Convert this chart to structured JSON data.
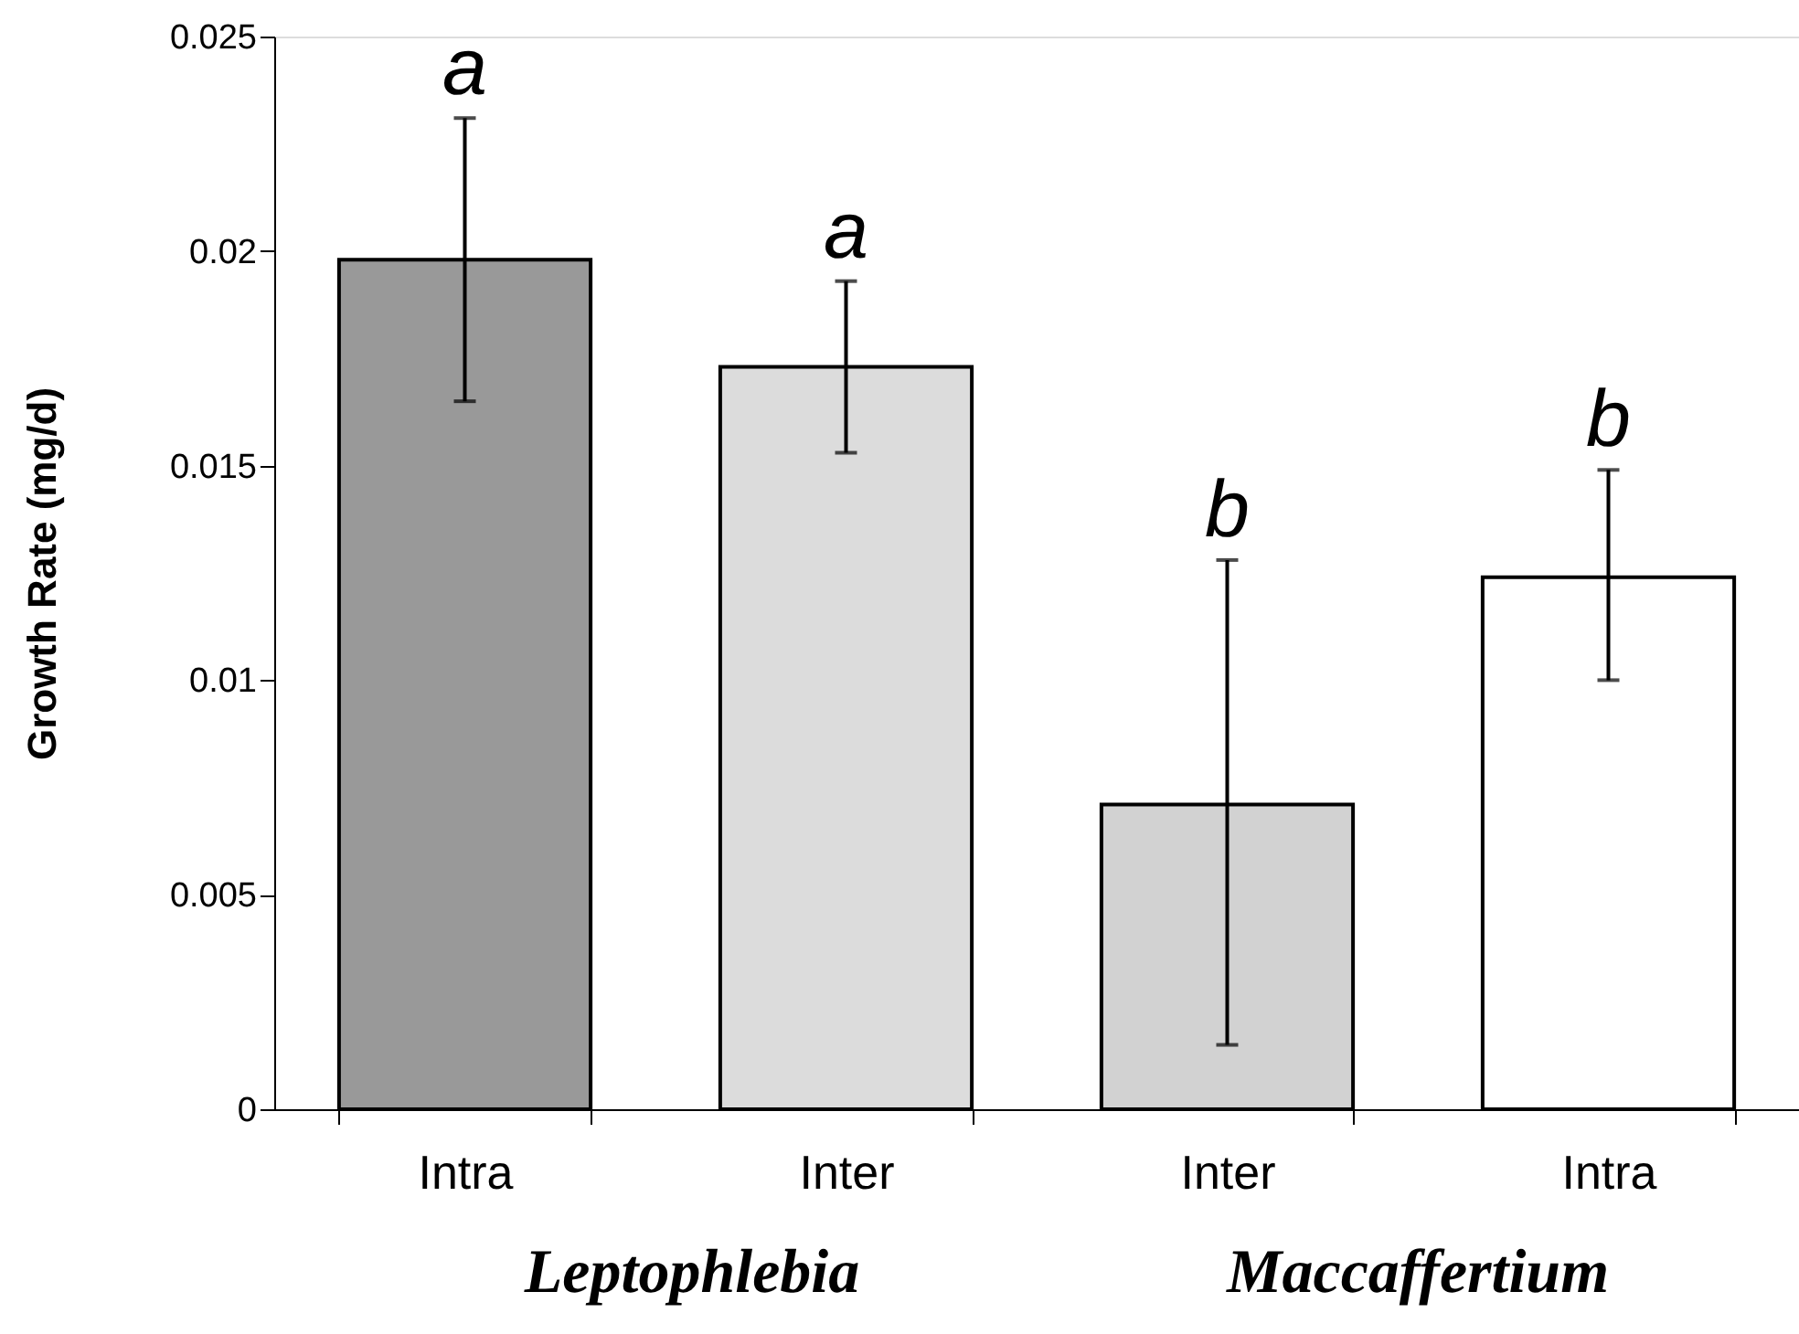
{
  "chart_data": {
    "type": "bar",
    "ylabel": "Growth Rate (mg/d)",
    "categories": [
      "Intra",
      "Inter",
      "Inter",
      "Intra"
    ],
    "values": [
      0.0198,
      0.0173,
      0.0071,
      0.0124
    ],
    "colors": [
      "#999999",
      "#dcdcdc",
      "#d2d2d2",
      "#ffffff"
    ],
    "errors": [
      [
        0.0165,
        0.0231
      ],
      [
        0.0153,
        0.0193
      ],
      [
        0.0015,
        0.0128
      ],
      [
        0.01,
        0.0149
      ]
    ],
    "value_labels": [
      "a",
      "a",
      "b",
      "b"
    ],
    "annotations": [
      "Leptophlebia",
      "Maccaffertium"
    ],
    "ylim": [
      0,
      0.025
    ],
    "yticks": [
      0,
      0.005,
      0.01,
      0.015,
      0.02,
      0.025
    ],
    "grid": false
  }
}
